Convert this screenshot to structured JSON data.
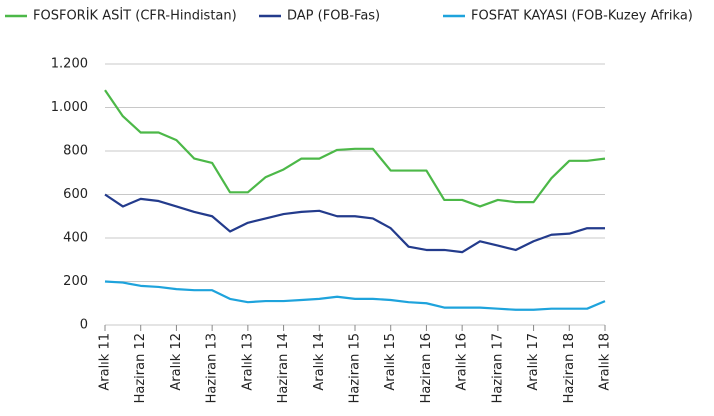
{
  "chart_data": {
    "type": "line",
    "x": [
      0,
      0.5,
      1,
      1.5,
      2,
      2.5,
      3,
      3.5,
      4,
      4.5,
      5,
      5.5,
      6,
      6.5,
      7,
      7.5,
      8,
      8.5,
      9,
      9.5,
      10,
      10.5,
      11,
      11.5,
      12,
      12.5,
      13,
      13.5,
      14
    ],
    "series": [
      {
        "name": "FOSFORİK ASİT (CFR-Hindistan)",
        "color": "#4cb848",
        "values": [
          1080,
          960,
          885,
          885,
          850,
          765,
          745,
          610,
          610,
          680,
          715,
          765,
          765,
          805,
          810,
          810,
          710,
          710,
          710,
          575,
          575,
          545,
          575,
          565,
          565,
          675,
          755,
          755,
          765
        ]
      },
      {
        "name": "DAP (FOB-Fas)",
        "color": "#233b8c",
        "values": [
          600,
          545,
          580,
          570,
          545,
          520,
          500,
          430,
          470,
          490,
          510,
          520,
          525,
          500,
          500,
          490,
          445,
          360,
          345,
          345,
          335,
          385,
          365,
          345,
          385,
          415,
          420,
          445,
          445
        ]
      },
      {
        "name": "FOSFAT KAYASI (FOB-Kuzey Afrika)",
        "color": "#1ea3dc",
        "values": [
          200,
          195,
          180,
          175,
          165,
          160,
          160,
          120,
          105,
          110,
          110,
          115,
          120,
          130,
          120,
          120,
          115,
          105,
          100,
          80,
          80,
          80,
          75,
          70,
          70,
          75,
          75,
          75,
          110
        ]
      }
    ],
    "xlim": [
      0,
      14
    ],
    "xticks": [
      {
        "value": 0,
        "label": "Aralık 11"
      },
      {
        "value": 1,
        "label": "Haziran 12"
      },
      {
        "value": 2,
        "label": "Aralık 12"
      },
      {
        "value": 3,
        "label": "Haziran 13"
      },
      {
        "value": 4,
        "label": "Aralık 13"
      },
      {
        "value": 5,
        "label": "Haziran 14"
      },
      {
        "value": 6,
        "label": "Aralık 14"
      },
      {
        "value": 7,
        "label": "Haziran 15"
      },
      {
        "value": 8,
        "label": "Aralık 15"
      },
      {
        "value": 9,
        "label": "Haziran 16"
      },
      {
        "value": 10,
        "label": "Aralık 16"
      },
      {
        "value": 11,
        "label": "Haziran 17"
      },
      {
        "value": 12,
        "label": "Aralık 17"
      },
      {
        "value": 13,
        "label": "Haziran 18"
      },
      {
        "value": 14,
        "label": "Aralık 18"
      }
    ],
    "ylim": [
      0,
      1200
    ],
    "yticks": [
      0,
      200,
      400,
      600,
      800,
      {
        "value": 1000,
        "label": "1.000"
      },
      {
        "value": 1200,
        "label": "1.200"
      }
    ],
    "grid": true,
    "legend": "top"
  }
}
